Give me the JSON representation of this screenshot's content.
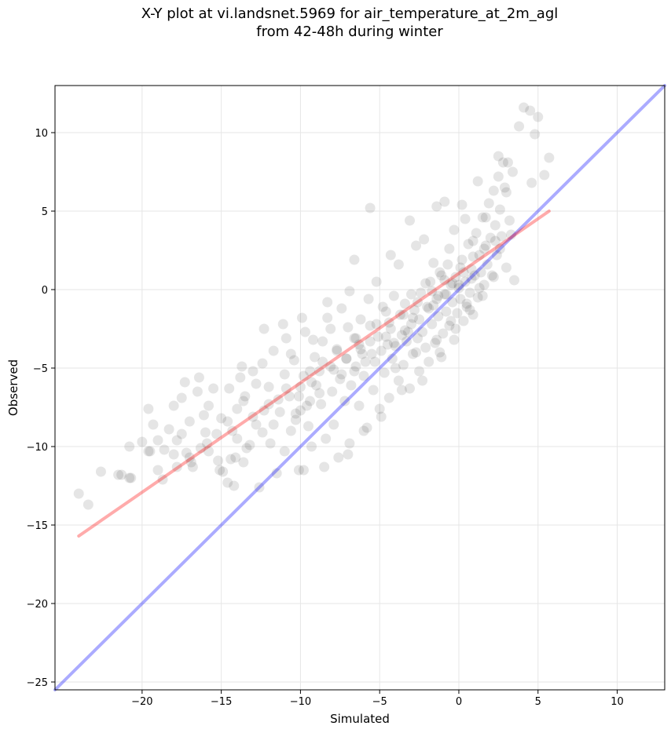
{
  "chart_data": {
    "type": "scatter",
    "title": "X-Y plot at vi.landsnet.5969 for air_temperature_at_2m_agl",
    "subtitle": "from 42-48h during winter",
    "xlabel": "Simulated",
    "ylabel": "Observed",
    "xlim": [
      -25.5,
      13
    ],
    "ylim": [
      -25.5,
      13
    ],
    "x_ticks": [
      -20,
      -15,
      -10,
      -5,
      0,
      5,
      10
    ],
    "y_ticks": [
      -25,
      -20,
      -15,
      -10,
      -5,
      0,
      5,
      10
    ],
    "x_tick_labels": [
      "−20",
      "−15",
      "−10",
      "−5",
      "0",
      "5",
      "10"
    ],
    "y_tick_labels": [
      "−25",
      "−20",
      "−15",
      "−10",
      "−5",
      "0",
      "5",
      "10"
    ],
    "grid": true,
    "point_color": "#000000",
    "series": [
      {
        "type": "scatter",
        "points": [
          [
            -24,
            -13
          ],
          [
            -23.4,
            -13.7
          ],
          [
            -22.6,
            -11.6
          ],
          [
            -21.5,
            -11.8
          ],
          [
            -20.8,
            -12
          ],
          [
            -20.8,
            -10
          ],
          [
            -20,
            -9.7
          ],
          [
            -19.6,
            -7.6
          ],
          [
            -19.5,
            -10.3
          ],
          [
            -19.3,
            -8.6
          ],
          [
            -19,
            -9.6
          ],
          [
            -19,
            -11.5
          ],
          [
            -18.6,
            -10.2
          ],
          [
            -18.3,
            -8.9
          ],
          [
            -18,
            -7.4
          ],
          [
            -18,
            -10.5
          ],
          [
            -17.8,
            -11.3
          ],
          [
            -17.5,
            -6.9
          ],
          [
            -17.5,
            -9.2
          ],
          [
            -17.3,
            -5.9
          ],
          [
            -17,
            -8.4
          ],
          [
            -17,
            -10.7
          ],
          [
            -16.8,
            -11.3
          ],
          [
            -16.5,
            -6.5
          ],
          [
            -16.4,
            -5.6
          ],
          [
            -16.1,
            -8
          ],
          [
            -16,
            -9.1
          ],
          [
            -15.8,
            -7.4
          ],
          [
            -15.8,
            -10.3
          ],
          [
            -15.5,
            -6.3
          ],
          [
            -15.3,
            -9.2
          ],
          [
            -15.1,
            -11.5
          ],
          [
            -15,
            -8.2
          ],
          [
            -14.9,
            -11.6
          ],
          [
            -14.6,
            -12.3
          ],
          [
            -14.5,
            -6.3
          ],
          [
            -14.4,
            -10.8
          ],
          [
            -14.2,
            -12.5
          ],
          [
            -14,
            -7.6
          ],
          [
            -14,
            -9.5
          ],
          [
            -13.8,
            -5.6
          ],
          [
            -13.6,
            -11
          ],
          [
            -13.5,
            -6.8
          ],
          [
            -13.2,
            -9.9
          ],
          [
            -13,
            -5.2
          ],
          [
            -12.8,
            -8.6
          ],
          [
            -12.6,
            -12.6
          ],
          [
            -12.4,
            -4.7
          ],
          [
            -12.3,
            -7.7
          ],
          [
            -12,
            -6.2
          ],
          [
            -11.9,
            -9.8
          ],
          [
            -11.7,
            -3.9
          ],
          [
            -11.5,
            -11.7
          ],
          [
            -11.3,
            -7.8
          ],
          [
            -11,
            -5.4
          ],
          [
            -11,
            -10.3
          ],
          [
            -10.9,
            -3.1
          ],
          [
            -10.7,
            -6.8
          ],
          [
            -10.6,
            -9
          ],
          [
            -10.4,
            -4.5
          ],
          [
            -10.3,
            -8.3
          ],
          [
            -10.1,
            -11.5
          ],
          [
            -10,
            -6.2
          ],
          [
            -10,
            -7.7
          ],
          [
            -9.8,
            -5.5
          ],
          [
            -9.7,
            -2.7
          ],
          [
            -9.5,
            -8.7
          ],
          [
            -9.4,
            -7.1
          ],
          [
            -9.3,
            -10
          ],
          [
            -9.1,
            -4.3
          ],
          [
            -9,
            -6.1
          ],
          [
            -8.8,
            -5.2
          ],
          [
            -8.7,
            -7.3
          ],
          [
            -8.6,
            -3.3
          ],
          [
            -8.4,
            -9.5
          ],
          [
            -8.3,
            -1.8
          ],
          [
            -8.1,
            -4.9
          ],
          [
            -8,
            -6.5
          ],
          [
            -7.9,
            -8.6
          ],
          [
            -7.7,
            -3.8
          ],
          [
            -7.5,
            -5.7
          ],
          [
            -7.4,
            -1.2
          ],
          [
            -7.2,
            -7.1
          ],
          [
            -7.1,
            -4.4
          ],
          [
            -7,
            -2.4
          ],
          [
            -6.9,
            -9.8
          ],
          [
            -6.8,
            -6.1
          ],
          [
            -6.6,
            -5.2
          ],
          [
            -6.5,
            -3.1
          ],
          [
            -6.3,
            -7.4
          ],
          [
            -6.2,
            -1.9
          ],
          [
            -6.1,
            -4.1
          ],
          [
            -6,
            -5.5
          ],
          [
            -5.8,
            -8.8
          ],
          [
            -5.7,
            -0.6
          ],
          [
            -5.6,
            -3.3
          ],
          [
            -5.4,
            -6.4
          ],
          [
            -5.3,
            -4.6
          ],
          [
            -5.2,
            -2.2
          ],
          [
            -5,
            -7.6
          ],
          [
            -4.9,
            -3.9
          ],
          [
            -4.8,
            -1.1
          ],
          [
            -4.7,
            -5.3
          ],
          [
            -4.6,
            -3
          ],
          [
            -4.4,
            -6.9
          ],
          [
            -4.3,
            -2.5
          ],
          [
            -4.2,
            -4.4
          ],
          [
            -4.1,
            -0.4
          ],
          [
            -4,
            -3.6
          ],
          [
            -3.8,
            -5.8
          ],
          [
            -3.7,
            -1.6
          ],
          [
            -3.6,
            -2.9
          ],
          [
            -3.5,
            -4.8
          ],
          [
            -3.4,
            -0.9
          ],
          [
            -3.3,
            -3.3
          ],
          [
            -3.1,
            -6.3
          ],
          [
            -3,
            -2.2
          ],
          [
            -2.9,
            -4.1
          ],
          [
            -2.8,
            -1.3
          ],
          [
            -2.6,
            -3.1
          ],
          [
            -2.5,
            -5.2
          ],
          [
            -2.4,
            -0.2
          ],
          [
            -2.3,
            -2.7
          ],
          [
            -2.1,
            -3.7
          ],
          [
            -2,
            -1.1
          ],
          [
            -1.9,
            -4.6
          ],
          [
            -1.8,
            0.5
          ],
          [
            -1.7,
            -2.2
          ],
          [
            -1.5,
            -3.4
          ],
          [
            -1.4,
            -0.6
          ],
          [
            -1.3,
            -1.7
          ],
          [
            -1.2,
            -4
          ],
          [
            -1.1,
            0.9
          ],
          [
            -1,
            -2.8
          ],
          [
            -0.9,
            -0.3
          ],
          [
            -0.8,
            -1.4
          ],
          [
            -0.7,
            1.6
          ],
          [
            -0.6,
            -2.3
          ],
          [
            -0.5,
            0.3
          ],
          [
            -0.4,
            -0.8
          ],
          [
            -0.3,
            -3.2
          ],
          [
            -0.2,
            0.8
          ],
          [
            -0.1,
            -1.5
          ],
          [
            0,
            0.1
          ],
          [
            0.1,
            -0.6
          ],
          [
            0.2,
            1.9
          ],
          [
            0.3,
            -2
          ],
          [
            0.4,
            0.5
          ],
          [
            0.5,
            -1.1
          ],
          [
            0.6,
            2.9
          ],
          [
            0.7,
            -0.2
          ],
          [
            0.8,
            1.3
          ],
          [
            0.9,
            -1.6
          ],
          [
            1,
            0.9
          ],
          [
            1.1,
            3.6
          ],
          [
            1.2,
            -0.5
          ],
          [
            1.3,
            2.2
          ],
          [
            1.4,
            1.1
          ],
          [
            1.5,
            4.6
          ],
          [
            1.6,
            0.3
          ],
          [
            1.7,
            2.8
          ],
          [
            1.8,
            1.6
          ],
          [
            1.9,
            5.5
          ],
          [
            2,
            3.3
          ],
          [
            2.1,
            0.9
          ],
          [
            2.2,
            6.3
          ],
          [
            2.3,
            4.1
          ],
          [
            2.4,
            2.2
          ],
          [
            2.5,
            7.2
          ],
          [
            2.6,
            5.1
          ],
          [
            2.7,
            3.4
          ],
          [
            2.8,
            8.1
          ],
          [
            3,
            6.2
          ],
          [
            3.2,
            4.4
          ],
          [
            3.4,
            7.5
          ],
          [
            3.5,
            0.6
          ],
          [
            3.8,
            10.4
          ],
          [
            4.1,
            11.6
          ],
          [
            4.5,
            11.4
          ],
          [
            4.6,
            6.8
          ],
          [
            4.8,
            9.9
          ],
          [
            5,
            11
          ],
          [
            5.4,
            7.3
          ],
          [
            5.7,
            8.4
          ],
          [
            -5.6,
            5.2
          ],
          [
            -3.1,
            4.4
          ],
          [
            -1.4,
            5.3
          ],
          [
            -6.6,
            1.9
          ],
          [
            -4.3,
            2.2
          ],
          [
            -2.7,
            2.8
          ],
          [
            -0.9,
            5.6
          ],
          [
            0.4,
            4.5
          ],
          [
            1.2,
            6.9
          ],
          [
            2.5,
            8.5
          ],
          [
            3.1,
            8.1
          ],
          [
            -8.3,
            -0.8
          ],
          [
            -9.9,
            -1.8
          ],
          [
            -12.3,
            -2.5
          ],
          [
            -13.7,
            -4.9
          ],
          [
            -11.1,
            -2.2
          ],
          [
            -7,
            -10.5
          ],
          [
            -8.5,
            -11.3
          ],
          [
            -9.8,
            -11.5
          ],
          [
            -7.6,
            -10.7
          ],
          [
            -6,
            -9
          ],
          [
            -4.9,
            -8.1
          ],
          [
            -3.6,
            -6.4
          ],
          [
            -2.3,
            -5.8
          ],
          [
            -1.1,
            -4.3
          ],
          [
            -0.2,
            -2.5
          ],
          [
            0.7,
            -1.3
          ],
          [
            1.5,
            -0.4
          ],
          [
            2.2,
            0.8
          ],
          [
            3,
            1.4
          ],
          [
            -2.2,
            3.2
          ],
          [
            -0.3,
            3.8
          ],
          [
            1.7,
            4.6
          ],
          [
            2.6,
            2.6
          ],
          [
            2.9,
            6.5
          ],
          [
            3.3,
            3.5
          ],
          [
            0.2,
            5.4
          ],
          [
            -3.8,
            1.6
          ],
          [
            -5.2,
            0.5
          ],
          [
            -6.9,
            -0.1
          ],
          [
            -1.6,
            1.7
          ],
          [
            -0.6,
            2.6
          ],
          [
            0.9,
            3.1
          ],
          [
            -10.6,
            -4.1
          ],
          [
            -9.2,
            -3.2
          ],
          [
            -8.1,
            -2.5
          ],
          [
            -12.8,
            -6
          ],
          [
            -13.6,
            -7.1
          ],
          [
            -14.6,
            -8.4
          ],
          [
            -15.9,
            -9.8
          ],
          [
            -16.9,
            -11
          ],
          [
            -18.7,
            -12.1
          ],
          [
            -19.6,
            -10.3
          ],
          [
            -17.8,
            -9.6
          ],
          [
            -6.2,
            -3.8
          ],
          [
            -5.9,
            -4.6
          ],
          [
            -4.5,
            -3.5
          ],
          [
            -3.2,
            -2.7
          ],
          [
            -2.9,
            -1.8
          ],
          [
            -1.9,
            -1.2
          ],
          [
            -1.3,
            -0.4
          ],
          [
            -0.4,
            0.4
          ],
          [
            0.3,
            1.1
          ],
          [
            -8.8,
            -6.6
          ],
          [
            -7.4,
            -5.4
          ],
          [
            -6.5,
            -4.9
          ],
          [
            -5.5,
            -4.1
          ],
          [
            -4.1,
            -3.4
          ],
          [
            -3.4,
            -2.6
          ],
          [
            -2.5,
            -1.9
          ],
          [
            -1.6,
            -1
          ],
          [
            -0.8,
            -0.3
          ],
          [
            0,
            0.3
          ],
          [
            0.8,
            0.7
          ],
          [
            -10.3,
            -7.9
          ],
          [
            -9.6,
            -7.4
          ],
          [
            -11.7,
            -8.6
          ],
          [
            -12.4,
            -9.1
          ],
          [
            -13.4,
            -10.1
          ],
          [
            -14.1,
            -10.7
          ],
          [
            -15.2,
            -10.9
          ],
          [
            -11.4,
            -7
          ],
          [
            -10.1,
            -6.8
          ],
          [
            -9.3,
            -5.9
          ],
          [
            -7.9,
            -5.1
          ],
          [
            -7.1,
            -4.4
          ],
          [
            -6.3,
            -3.5
          ],
          [
            -5.1,
            -3
          ],
          [
            -4.4,
            -2.1
          ],
          [
            -3.5,
            -1.6
          ],
          [
            -2.6,
            -0.8
          ],
          [
            -1.7,
            -0.1
          ],
          [
            -0.9,
            0.6
          ],
          [
            0.1,
            1.4
          ],
          [
            0.9,
            2.1
          ],
          [
            1.6,
            2.6
          ],
          [
            2.3,
            3.1
          ],
          [
            -4,
            -5
          ],
          [
            -2.7,
            -4
          ],
          [
            -1.4,
            -3.2
          ],
          [
            -0.5,
            -2
          ],
          [
            0.5,
            -0.9
          ],
          [
            1.3,
            0.1
          ],
          [
            -1.2,
            1.1
          ],
          [
            -2.1,
            0.4
          ],
          [
            -3,
            -0.3
          ],
          [
            -4.6,
            -1.4
          ],
          [
            -5.6,
            -2.3
          ],
          [
            -6.6,
            -3.1
          ],
          [
            -7.7,
            -3.9
          ],
          [
            -8.6,
            -4.6
          ],
          [
            -9.4,
            -5.2
          ],
          [
            -10.9,
            -6.3
          ],
          [
            -12,
            -7.3
          ],
          [
            -13,
            -8.1
          ],
          [
            -14.3,
            -9
          ],
          [
            -16.3,
            -10.1
          ],
          [
            -17.2,
            -10.4
          ],
          [
            -20.7,
            -12
          ],
          [
            -21.3,
            -11.8
          ]
        ]
      },
      {
        "type": "line",
        "color": "#0000ff",
        "points": [
          [
            -25.5,
            -25.5
          ],
          [
            13,
            13
          ]
        ]
      },
      {
        "type": "line",
        "color": "#ff0000",
        "points": [
          [
            -24,
            -15.7
          ],
          [
            5.7,
            5
          ]
        ]
      }
    ]
  }
}
